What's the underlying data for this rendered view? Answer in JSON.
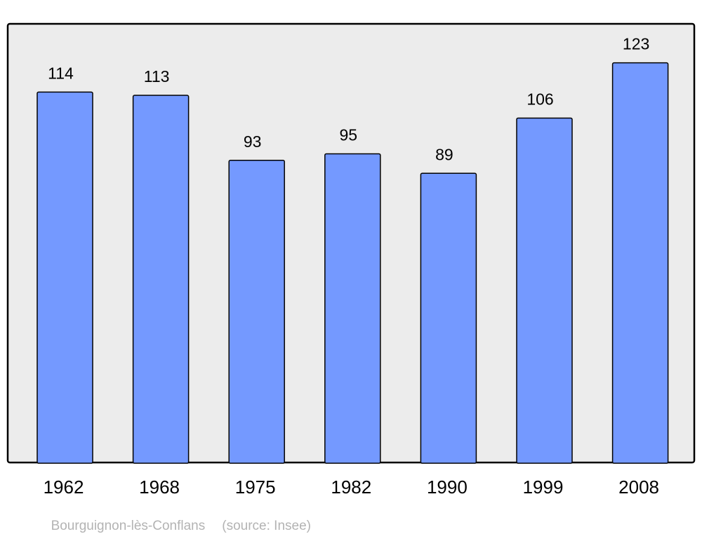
{
  "chart_data": {
    "type": "bar",
    "categories": [
      "1962",
      "1968",
      "1975",
      "1982",
      "1990",
      "1999",
      "2008"
    ],
    "values": [
      114,
      113,
      93,
      95,
      89,
      106,
      123
    ],
    "ylim": [
      0,
      135
    ],
    "grid": false,
    "title": "",
    "xlabel": "",
    "ylabel": "",
    "colors": {
      "bar": "#7499ff",
      "background": "#ececec",
      "frame": "#000000"
    }
  },
  "footer": {
    "place": "Bourguignon-lès-Conflans",
    "source": "(source: Insee)"
  }
}
